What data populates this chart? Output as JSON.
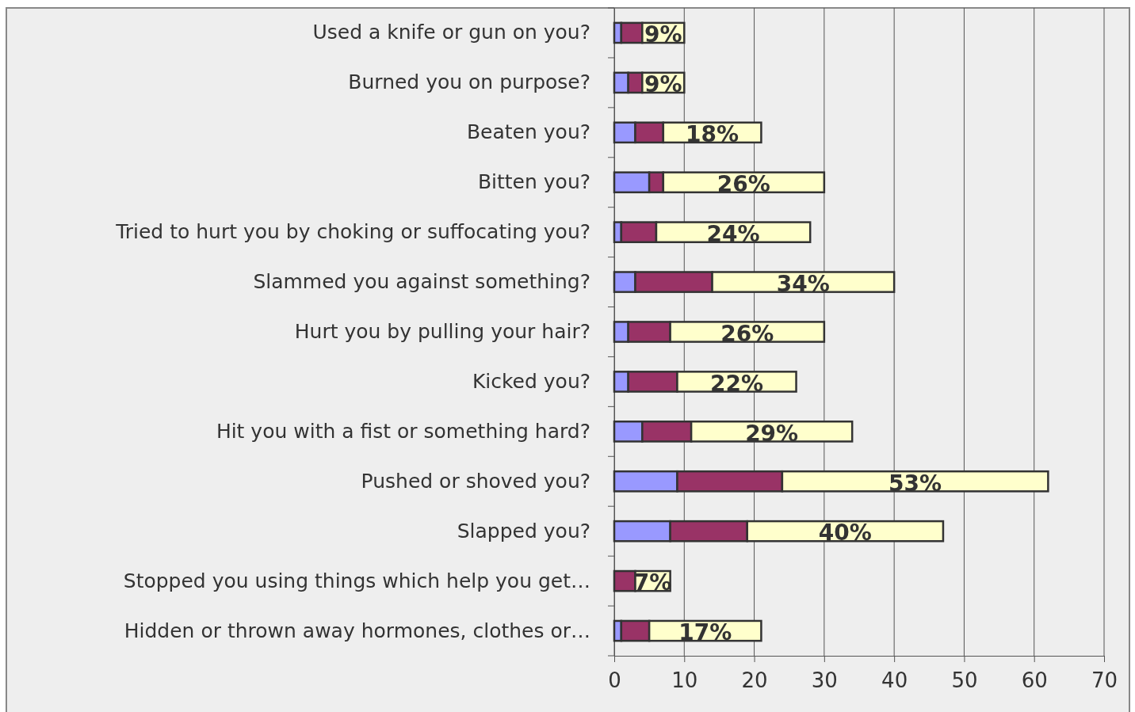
{
  "chart_data": {
    "type": "bar",
    "orientation": "horizontal",
    "stacked": true,
    "categories": [
      "Used a knife or gun on you?",
      "Burned you on purpose?",
      "Beaten you?",
      "Bitten you?",
      "Tried to hurt you by choking or suffocating you?",
      "Slammed you against something?",
      "Hurt you by pulling your hair?",
      "Kicked you?",
      "Hit you with a fist or something hard?",
      "Pushed or shoved you?",
      "Slapped you?",
      "Stopped you using things which help you get…",
      "Hidden or thrown away hormones, clothes or…"
    ],
    "series": [
      {
        "color": "#9999ff",
        "values": [
          1,
          2,
          3,
          5,
          1,
          3,
          2,
          2,
          4,
          9,
          8,
          0,
          1
        ]
      },
      {
        "color": "#993366",
        "values": [
          3,
          2,
          4,
          2,
          5,
          11,
          6,
          7,
          7,
          15,
          11,
          3,
          4
        ]
      },
      {
        "color": "#ffffcc",
        "values": [
          6,
          6,
          14,
          23,
          22,
          26,
          22,
          17,
          23,
          38,
          28,
          5,
          16
        ]
      }
    ],
    "annotations": [
      "9%",
      "9%",
      "18%",
      "26%",
      "24%",
      "34%",
      "26%",
      "22%",
      "29%",
      "53%",
      "40%",
      "7%",
      "17%"
    ],
    "xlim": [
      0,
      70
    ],
    "xticks": [
      0,
      10,
      20,
      30,
      40,
      50,
      60,
      70
    ],
    "grid": "x"
  }
}
